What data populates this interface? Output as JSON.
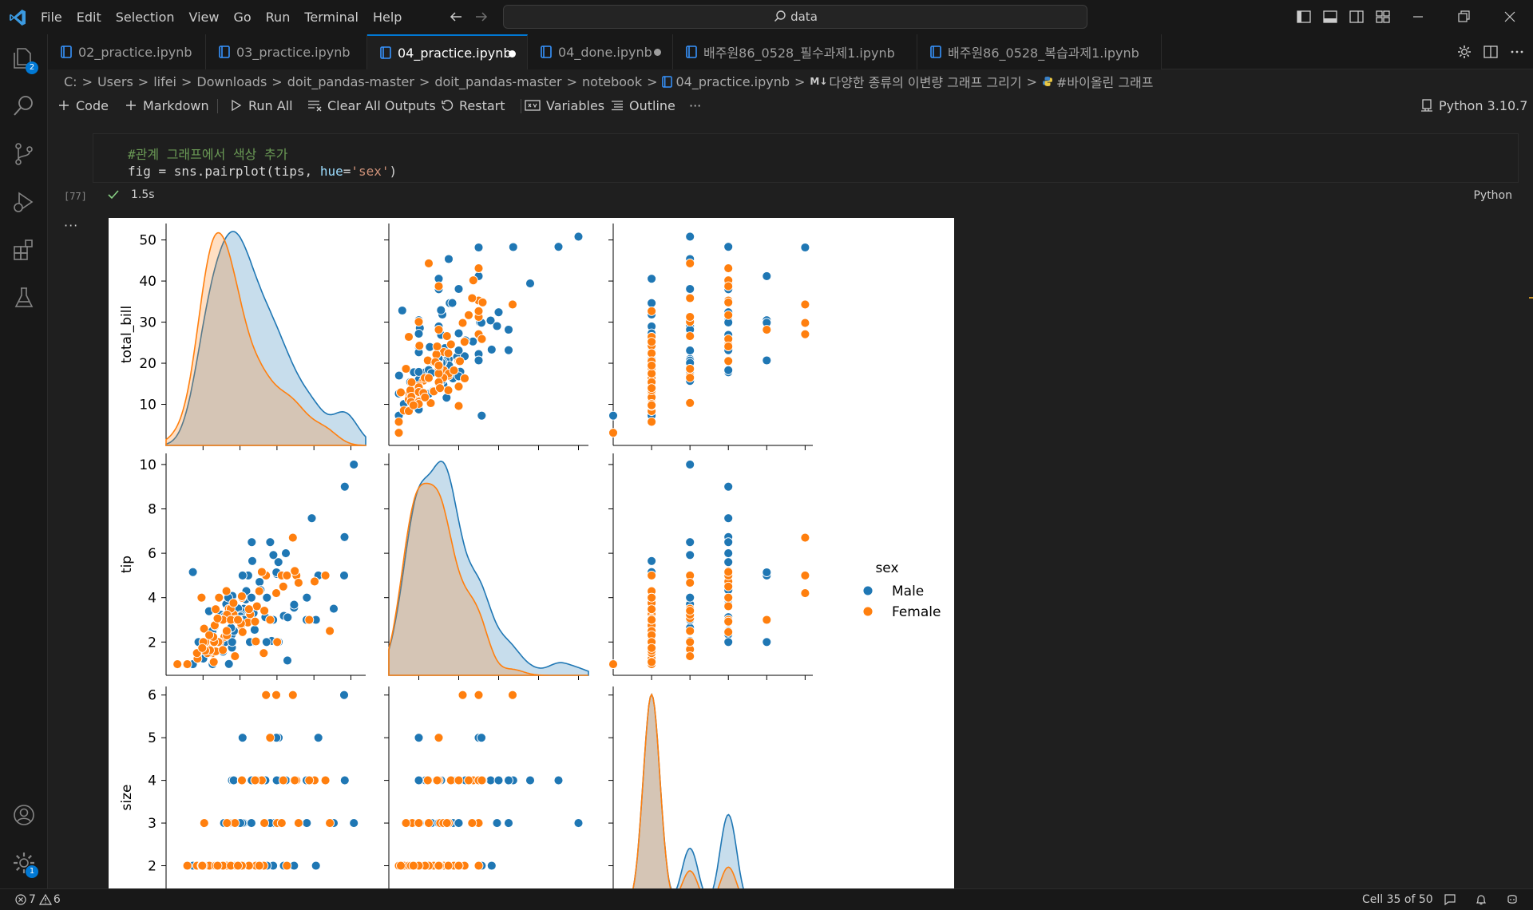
{
  "menu": [
    "File",
    "Edit",
    "Selection",
    "View",
    "Go",
    "Run",
    "Terminal",
    "Help"
  ],
  "command_center": {
    "text": "data"
  },
  "activity_bar": {
    "explorer_badge": "2",
    "settings_badge": "1"
  },
  "tabs": [
    {
      "label": "02_practice.ipynb",
      "active": false,
      "dot": ""
    },
    {
      "label": "03_practice.ipynb",
      "active": false,
      "dot": ""
    },
    {
      "label": "04_practice.ipynb",
      "active": true,
      "dot": "modified"
    },
    {
      "label": "04_done.ipynb",
      "active": false,
      "dot": "modified"
    },
    {
      "label": "배주원86_0528_필수과제1.ipynb",
      "active": false,
      "dot": ""
    },
    {
      "label": "배주원86_0528_복습과제1.ipynb",
      "active": false,
      "dot": ""
    }
  ],
  "breadcrumb": [
    "C:",
    "Users",
    "lifei",
    "Downloads",
    "doit_pandas-master",
    "doit_pandas-master",
    "notebook",
    "04_practice.ipynb",
    "다양한 종류의 이변량 그래프 그리기",
    "#바이올린 그래프"
  ],
  "breadcrumb_md_tag": "M↓",
  "toolbar": {
    "code": "Code",
    "markdown": "Markdown",
    "run_all": "Run All",
    "clear_outputs": "Clear All Outputs",
    "restart": "Restart",
    "variables": "Variables",
    "outline": "Outline",
    "more": "···",
    "kernel": "Python 3.10.7"
  },
  "cell": {
    "comment": "#관계 그래프에서 색상 추가",
    "code_prefix": "fig = sns.pairplot(tips, ",
    "code_kw": "hue",
    "code_eq": "=",
    "code_str": "'sex'",
    "code_suffix": ")",
    "exec_count": "[77]",
    "exec_time": "1.5s",
    "language": "Python",
    "output_more": "···"
  },
  "chart_data": {
    "type": "scatter",
    "kind": "pairplot",
    "variables": [
      "total_bill",
      "tip",
      "size"
    ],
    "hue": "sex",
    "legend": {
      "title": "sex",
      "entries": [
        "Male",
        "Female"
      ],
      "placement": "right-center"
    },
    "colors": {
      "Male": "#1f77b4",
      "Female": "#ff7f0e"
    },
    "axes": {
      "total_bill": {
        "ticks": [
          10,
          20,
          30,
          40,
          50
        ],
        "range": [
          0,
          54
        ]
      },
      "tip": {
        "ticks": [
          2,
          4,
          6,
          8,
          10
        ],
        "range": [
          0.5,
          10.5
        ]
      },
      "size": {
        "ticks": [
          2,
          3,
          4,
          5,
          6
        ],
        "range": [
          1,
          6.2
        ]
      }
    },
    "series": [
      {
        "name": "Male",
        "points": [
          [
            16.99,
            1.01,
            2
          ],
          [
            10.34,
            1.66,
            3
          ],
          [
            21.01,
            3.5,
            3
          ],
          [
            23.68,
            3.31,
            2
          ],
          [
            25.29,
            4.71,
            4
          ],
          [
            8.77,
            2.0,
            2
          ],
          [
            26.88,
            3.12,
            4
          ],
          [
            15.04,
            1.96,
            2
          ],
          [
            14.78,
            3.23,
            2
          ],
          [
            10.27,
            1.71,
            2
          ],
          [
            15.42,
            1.57,
            2
          ],
          [
            18.43,
            3.0,
            4
          ],
          [
            21.58,
            3.92,
            2
          ],
          [
            16.29,
            3.71,
            3
          ],
          [
            17.46,
            2.54,
            2
          ],
          [
            20.65,
            3.35,
            3
          ],
          [
            17.92,
            4.08,
            2
          ],
          [
            39.42,
            7.58,
            4
          ],
          [
            19.82,
            3.18,
            2
          ],
          [
            17.81,
            2.34,
            4
          ],
          [
            13.37,
            2.0,
            2
          ],
          [
            12.69,
            2.0,
            2
          ],
          [
            21.7,
            4.3,
            2
          ],
          [
            9.55,
            1.45,
            2
          ],
          [
            18.35,
            2.5,
            4
          ],
          [
            20.69,
            2.45,
            4
          ],
          [
            30.4,
            5.6,
            4
          ],
          [
            18.29,
            3.76,
            4
          ],
          [
            22.23,
            5.0,
            2
          ],
          [
            32.4,
            6.0,
            4
          ],
          [
            28.55,
            2.05,
            3
          ],
          [
            18.04,
            3.0,
            2
          ],
          [
            12.54,
            2.5,
            2
          ],
          [
            9.94,
            1.56,
            2
          ],
          [
            25.56,
            4.34,
            4
          ],
          [
            19.49,
            3.51,
            2
          ],
          [
            38.01,
            3.0,
            4
          ],
          [
            11.24,
            1.76,
            2
          ],
          [
            48.27,
            6.73,
            4
          ],
          [
            20.29,
            3.21,
            2
          ],
          [
            13.81,
            2.0,
            2
          ],
          [
            11.02,
            1.98,
            2
          ],
          [
            18.29,
            3.76,
            4
          ],
          [
            17.59,
            2.64,
            3
          ],
          [
            20.08,
            3.15,
            3
          ],
          [
            16.0,
            2.0,
            2
          ],
          [
            34.83,
            5.17,
            4
          ],
          [
            24.59,
            3.61,
            4
          ],
          [
            25.21,
            4.29,
            2
          ],
          [
            18.24,
            3.76,
            2
          ],
          [
            14.31,
            4.0,
            2
          ],
          [
            14.0,
            3.0,
            2
          ],
          [
            7.25,
            1.0,
            1
          ],
          [
            38.07,
            4.0,
            3
          ],
          [
            23.95,
            2.55,
            2
          ],
          [
            29.93,
            5.07,
            4
          ],
          [
            20.45,
            3.0,
            4
          ],
          [
            13.28,
            2.72,
            2
          ],
          [
            24.01,
            2.0,
            4
          ],
          [
            15.69,
            3.0,
            3
          ],
          [
            11.61,
            3.39,
            2
          ],
          [
            10.77,
            1.47,
            2
          ],
          [
            15.53,
            3.0,
            2
          ],
          [
            10.07,
            1.25,
            2
          ],
          [
            12.6,
            1.0,
            2
          ],
          [
            32.83,
            1.17,
            2
          ],
          [
            35.83,
            4.67,
            3
          ],
          [
            29.03,
            5.92,
            3
          ],
          [
            27.18,
            2.0,
            2
          ],
          [
            22.67,
            2.0,
            2
          ],
          [
            17.82,
            1.75,
            2
          ],
          [
            50.81,
            10.0,
            3
          ],
          [
            15.81,
            3.16,
            2
          ],
          [
            7.25,
            5.15,
            2
          ],
          [
            31.85,
            3.18,
            2
          ],
          [
            16.82,
            4.0,
            2
          ],
          [
            32.9,
            3.11,
            2
          ],
          [
            17.89,
            2.0,
            2
          ],
          [
            14.48,
            2.0,
            2
          ],
          [
            34.63,
            3.55,
            2
          ],
          [
            34.65,
            3.68,
            4
          ],
          [
            23.33,
            5.65,
            2
          ],
          [
            45.35,
            3.5,
            3
          ],
          [
            23.17,
            6.5,
            4
          ],
          [
            40.55,
            3.0,
            2
          ],
          [
            20.69,
            5.0,
            5
          ],
          [
            30.46,
            2.0,
            5
          ],
          [
            23.1,
            4.0,
            3
          ],
          [
            28.15,
            3.0,
            5
          ],
          [
            41.19,
            5.0,
            5
          ],
          [
            48.17,
            5.0,
            6
          ],
          [
            34.3,
            6.7,
            6
          ],
          [
            27.05,
            5.0,
            6
          ],
          [
            48.33,
            9.0,
            4
          ],
          [
            24.27,
            2.03,
            2
          ],
          [
            12.03,
            1.5,
            2
          ],
          [
            21.16,
            3.0,
            2
          ],
          [
            28.97,
            3.0,
            2
          ],
          [
            22.49,
            3.5,
            2
          ],
          [
            40.17,
            4.73,
            4
          ],
          [
            27.28,
            4.0,
            2
          ],
          [
            12.76,
            2.23,
            2
          ],
          [
            30.06,
            2.0,
            3
          ],
          [
            25.89,
            5.16,
            4
          ],
          [
            48.33,
            9.0,
            4
          ],
          [
            28.17,
            6.5,
            3
          ],
          [
            29.85,
            5.14,
            5
          ]
        ]
      },
      {
        "name": "Female",
        "points": [
          [
            24.59,
            3.61,
            4
          ],
          [
            35.26,
            5.0,
            4
          ],
          [
            14.83,
            3.02,
            2
          ],
          [
            10.33,
            1.67,
            3
          ],
          [
            16.97,
            3.5,
            3
          ],
          [
            20.29,
            2.75,
            2
          ],
          [
            15.77,
            2.23,
            2
          ],
          [
            19.65,
            3.0,
            2
          ],
          [
            15.06,
            3.0,
            2
          ],
          [
            20.69,
            2.45,
            4
          ],
          [
            16.93,
            3.07,
            3
          ],
          [
            26.41,
            1.5,
            2
          ],
          [
            16.45,
            2.47,
            2
          ],
          [
            3.07,
            1.0,
            1
          ],
          [
            10.29,
            2.6,
            2
          ],
          [
            34.81,
            5.2,
            4
          ],
          [
            5.75,
            1.0,
            2
          ],
          [
            16.32,
            4.3,
            2
          ],
          [
            22.75,
            3.25,
            2
          ],
          [
            40.17,
            4.73,
            4
          ],
          [
            22.12,
            2.88,
            2
          ],
          [
            18.26,
            3.25,
            2
          ],
          [
            12.46,
            1.5,
            2
          ],
          [
            11.59,
            1.5,
            2
          ],
          [
            13.42,
            1.58,
            2
          ],
          [
            8.52,
            1.48,
            2
          ],
          [
            14.52,
            2.0,
            2
          ],
          [
            11.38,
            2.0,
            2
          ],
          [
            20.27,
            2.83,
            2
          ],
          [
            11.17,
            1.5,
            2
          ],
          [
            12.26,
            2.0,
            2
          ],
          [
            18.26,
            3.25,
            2
          ],
          [
            8.51,
            1.25,
            2
          ],
          [
            10.33,
            2.0,
            2
          ],
          [
            14.15,
            2.0,
            2
          ],
          [
            13.16,
            2.75,
            2
          ],
          [
            17.47,
            3.5,
            2
          ],
          [
            27.05,
            5.0,
            6
          ],
          [
            16.43,
            2.3,
            2
          ],
          [
            29.8,
            4.2,
            6
          ],
          [
            8.35,
            1.5,
            2
          ],
          [
            18.64,
            1.36,
            3
          ],
          [
            11.87,
            1.63,
            2
          ],
          [
            43.11,
            5.0,
            4
          ],
          [
            13.0,
            2.0,
            2
          ],
          [
            12.74,
            2.01,
            2
          ],
          [
            13.0,
            2.0,
            2
          ],
          [
            16.4,
            2.5,
            2
          ],
          [
            20.53,
            4.0,
            4
          ],
          [
            16.47,
            3.23,
            3
          ],
          [
            26.59,
            3.41,
            3
          ],
          [
            38.73,
            3.0,
            4
          ],
          [
            24.27,
            2.03,
            2
          ],
          [
            12.76,
            2.23,
            2
          ],
          [
            30.06,
            2.0,
            3
          ],
          [
            25.89,
            5.16,
            4
          ],
          [
            44.3,
            2.5,
            3
          ],
          [
            22.42,
            3.48,
            2
          ],
          [
            15.36,
            1.64,
            2
          ],
          [
            20.49,
            4.06,
            2
          ],
          [
            25.21,
            4.29,
            2
          ],
          [
            18.24,
            3.76,
            2
          ],
          [
            14.31,
            4.0,
            2
          ],
          [
            10.59,
            1.61,
            2
          ],
          [
            10.63,
            2.0,
            2
          ],
          [
            12.9,
            1.1,
            2
          ],
          [
            28.15,
            3.0,
            5
          ],
          [
            11.69,
            2.31,
            2
          ],
          [
            13.42,
            3.48,
            2
          ],
          [
            9.6,
            4.0,
            2
          ],
          [
            34.3,
            6.7,
            6
          ],
          [
            31.27,
            5.0,
            3
          ],
          [
            18.78,
            3.0,
            2
          ],
          [
            35.83,
            4.67,
            3
          ],
          [
            15.38,
            3.0,
            2
          ],
          [
            17.51,
            3.0,
            2
          ],
          [
            24.08,
            2.92,
            4
          ],
          [
            13.94,
            3.06,
            2
          ],
          [
            10.09,
            2.0,
            2
          ],
          [
            9.78,
            1.73,
            2
          ],
          [
            19.44,
            3.0,
            2
          ],
          [
            32.68,
            5.0,
            2
          ],
          [
            31.71,
            4.5,
            4
          ]
        ]
      }
    ]
  },
  "status_bar": {
    "errors": "7",
    "warnings": "6",
    "cell_position": "Cell 35 of 50"
  }
}
